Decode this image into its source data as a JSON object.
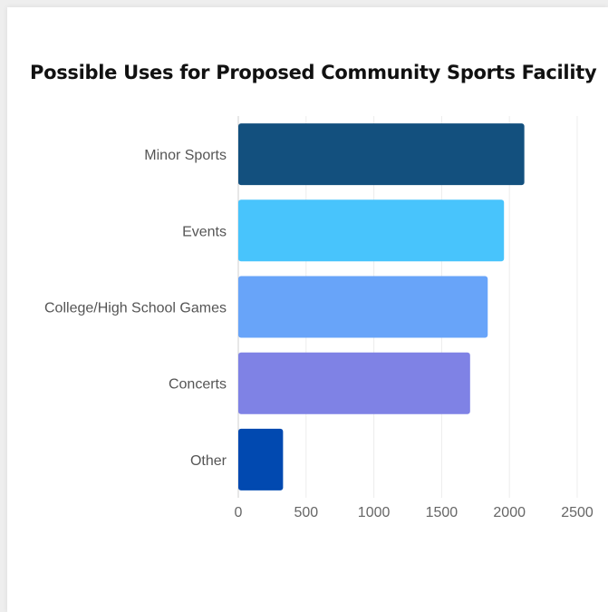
{
  "chart_data": {
    "type": "bar",
    "orientation": "horizontal",
    "title": "Possible Uses for Proposed Community Sports Facility",
    "categories": [
      "Minor Sports",
      "Events",
      "College/High School Games",
      "Concerts",
      "Other"
    ],
    "values": [
      2110,
      1960,
      1840,
      1710,
      330
    ],
    "colors": [
      "#13507e",
      "#48c4fc",
      "#68a4f9",
      "#7f82e5",
      "#0149b0"
    ],
    "xlim": [
      0,
      2500
    ],
    "xticks": [
      0,
      500,
      1000,
      1500,
      2000,
      2500
    ],
    "xtick_labels": [
      "0",
      "500",
      "1000",
      "1500",
      "2000",
      "2500"
    ],
    "grid": true,
    "legend": "none"
  }
}
